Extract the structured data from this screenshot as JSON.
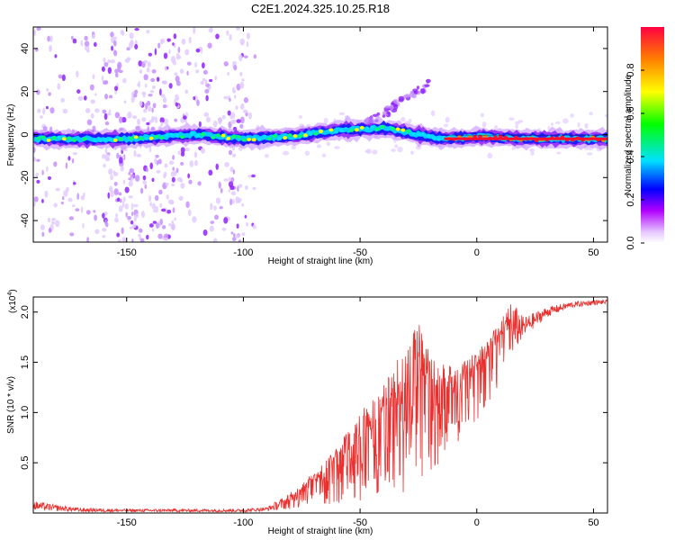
{
  "title": "C2E1.2024.325.10.25.R18",
  "chart_data": [
    {
      "type": "heatmap",
      "xlabel": "Height of straight line (km)",
      "ylabel": "Frequency (Hz)",
      "xlim": [
        -190,
        56
      ],
      "ylim": [
        -50,
        50
      ],
      "xticks": [
        -150,
        -100,
        -50,
        0,
        50
      ],
      "yticks": [
        -40,
        -20,
        0,
        20,
        40
      ],
      "colorbar": {
        "label": "Normalized spectral amplitude",
        "range": [
          0,
          1
        ],
        "ticks": [
          "0.0",
          "0.2",
          "0.4",
          "0.6",
          "0.8"
        ],
        "tick_values": [
          0,
          0.2,
          0.4,
          0.6,
          0.8
        ],
        "colors": [
          "#ffffff",
          "#e6c8ff",
          "#b000ff",
          "#0000ff",
          "#00e0ff",
          "#00ff00",
          "#ffff00",
          "#ff8000",
          "#ff0040"
        ]
      },
      "ridge": {
        "description": "main signal near 0 Hz",
        "x": [
          -190,
          -150,
          -120,
          -100,
          -80,
          -60,
          -40,
          -25,
          -15,
          0,
          20,
          56
        ],
        "y": [
          -2,
          -2,
          0,
          -2,
          -1,
          2,
          3,
          0,
          -2,
          -1,
          -2,
          -2
        ]
      }
    },
    {
      "type": "line",
      "xlabel": "Height of straight line (km)",
      "ylabel": "SNR (10 * v/v)",
      "yscale_label": "(x10",
      "yscale_exp": "4",
      "xlim": [
        -190,
        56
      ],
      "ylim": [
        0,
        2.15
      ],
      "xticks": [
        -150,
        -100,
        -50,
        0,
        50
      ],
      "yticks": [
        "0.5",
        "1.0",
        "1.5",
        "2.0"
      ],
      "ytick_values": [
        0.5,
        1.0,
        1.5,
        2.0
      ],
      "series": [
        {
          "color": "#e8312f",
          "envelope": {
            "x": [
              -190,
              -180,
              -170,
              -150,
              -120,
              -100,
              -90,
              -80,
              -70,
              -60,
              -50,
              -40,
              -30,
              -25,
              -20,
              -10,
              0,
              10,
              15,
              20,
              30,
              40,
              50,
              56
            ],
            "lo": [
              0.03,
              0.02,
              0.01,
              0.01,
              0.01,
              0.01,
              0.02,
              0.04,
              0.06,
              0.08,
              0.1,
              0.15,
              0.2,
              0.3,
              0.4,
              0.6,
              0.9,
              1.3,
              1.55,
              1.75,
              1.95,
              2.04,
              2.07,
              2.08
            ],
            "hi": [
              0.12,
              0.08,
              0.05,
              0.04,
              0.04,
              0.04,
              0.06,
              0.2,
              0.4,
              0.65,
              1.0,
              1.3,
              1.7,
              1.9,
              1.6,
              1.45,
              1.6,
              1.9,
              2.12,
              1.95,
              2.05,
              2.1,
              2.12,
              2.12
            ]
          }
        }
      ]
    }
  ]
}
